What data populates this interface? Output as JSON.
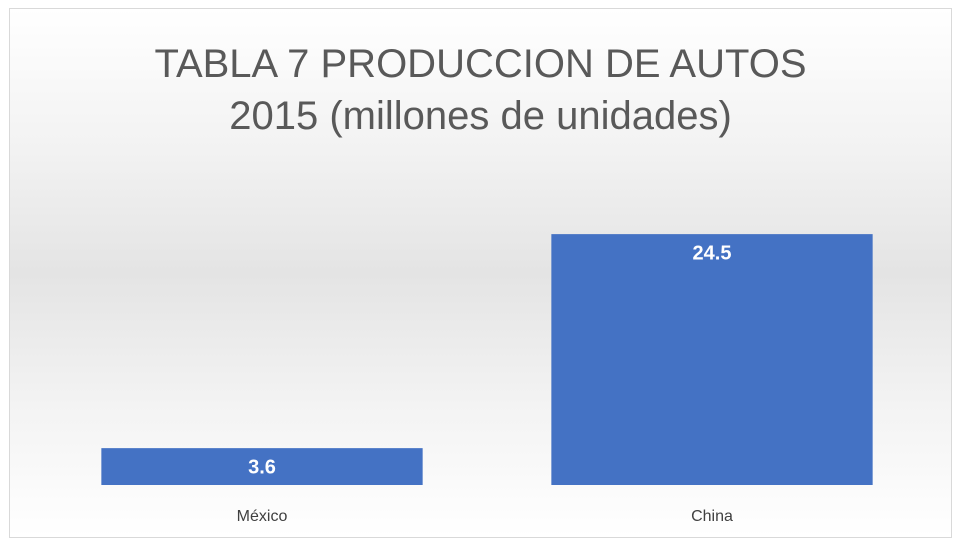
{
  "chart_data": {
    "type": "bar",
    "title": "TABLA 7 PRODUCCION DE AUTOS\n2015  (millones de unidades)",
    "categories": [
      "México",
      "China"
    ],
    "values": [
      3.6,
      24.5
    ],
    "color": "#4472c4",
    "ylim": [
      0,
      25
    ],
    "grid": false
  }
}
